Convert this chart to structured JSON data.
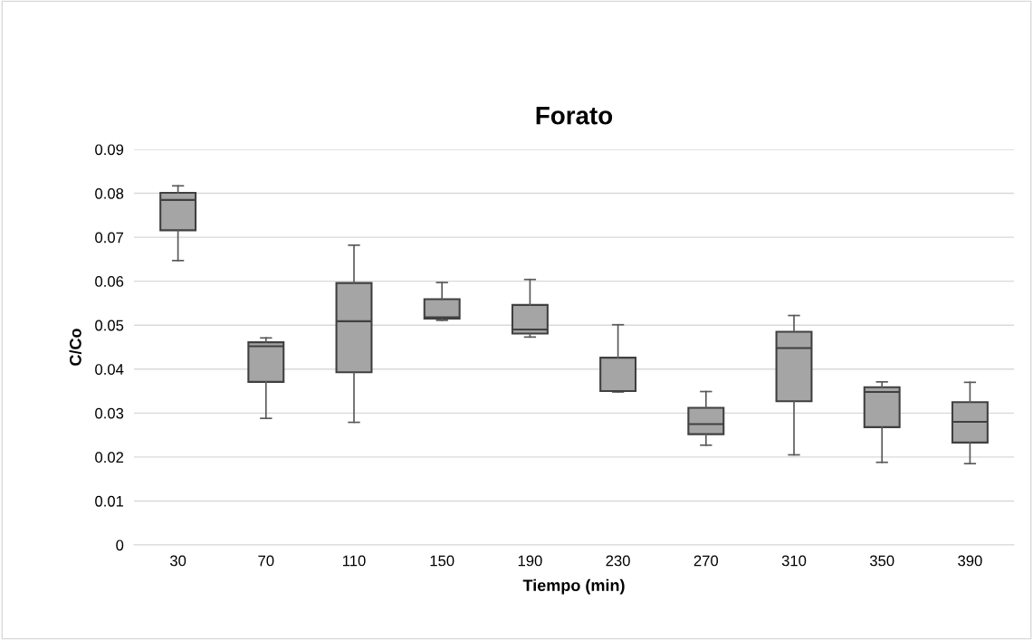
{
  "chart_data": {
    "type": "box",
    "title": "Forato",
    "xlabel": "Tiempo (min)",
    "ylabel": "C/Co",
    "categories": [
      "30",
      "70",
      "110",
      "150",
      "190",
      "230",
      "270",
      "310",
      "350",
      "390"
    ],
    "color": "#a5a5a5",
    "boxes": [
      {
        "low": 0.0647,
        "q1": 0.0716,
        "median": 0.0785,
        "q3": 0.0801,
        "high": 0.0817
      },
      {
        "low": 0.0288,
        "q1": 0.0371,
        "median": 0.0452,
        "q3": 0.0461,
        "high": 0.0471
      },
      {
        "low": 0.0279,
        "q1": 0.0393,
        "median": 0.0509,
        "q3": 0.0596,
        "high": 0.0682
      },
      {
        "low": 0.0511,
        "q1": 0.0515,
        "median": 0.0518,
        "q3": 0.0559,
        "high": 0.0597
      },
      {
        "low": 0.0473,
        "q1": 0.0481,
        "median": 0.049,
        "q3": 0.0546,
        "high": 0.0604
      },
      {
        "low": 0.0348,
        "q1": 0.035,
        "median": 0.035,
        "q3": 0.0426,
        "high": 0.0501
      },
      {
        "low": 0.0227,
        "q1": 0.0252,
        "median": 0.0275,
        "q3": 0.0312,
        "high": 0.0349
      },
      {
        "low": 0.0205,
        "q1": 0.0327,
        "median": 0.0448,
        "q3": 0.0485,
        "high": 0.0522
      },
      {
        "low": 0.0188,
        "q1": 0.0268,
        "median": 0.0348,
        "q3": 0.0359,
        "high": 0.0371
      },
      {
        "low": 0.0185,
        "q1": 0.0233,
        "median": 0.028,
        "q3": 0.0325,
        "high": 0.037
      }
    ],
    "ylim": [
      0,
      0.09
    ],
    "yticks": [
      0,
      0.01,
      0.02,
      0.03,
      0.04,
      0.05,
      0.06,
      0.07,
      0.08,
      0.09
    ],
    "grid": "y"
  }
}
